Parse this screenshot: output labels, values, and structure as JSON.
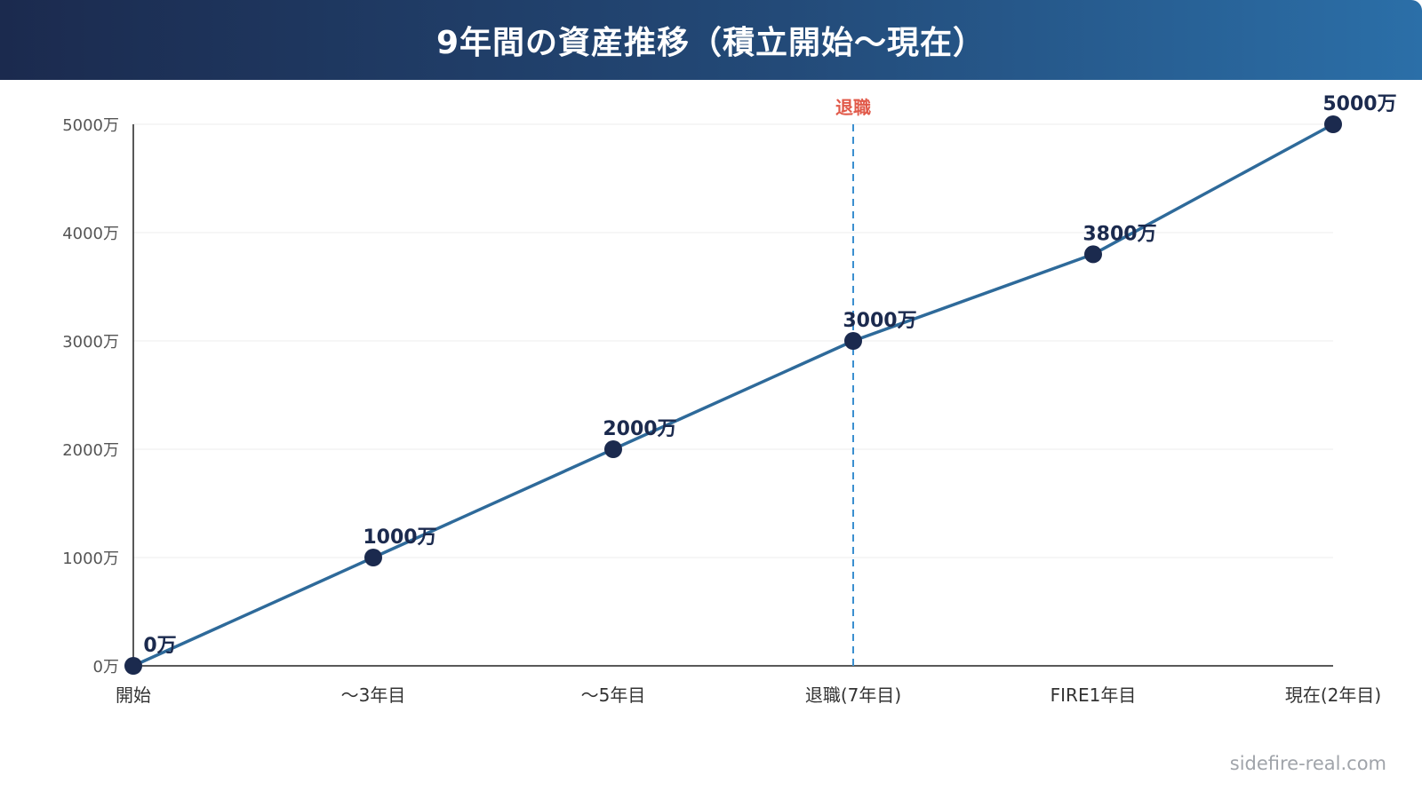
{
  "title": "9年間の資産推移（積立開始〜現在）",
  "footer": "sidefire-real.com",
  "colors": {
    "line": "#2e6a9a",
    "point": "#1b2a4e",
    "marker": "#3b8fd0",
    "marker_text": "#e15a4a",
    "tick": "#555555",
    "grid": "#ececec"
  },
  "chart_data": {
    "type": "line",
    "categories": [
      "開始",
      "〜3年目",
      "〜5年目",
      "退職(7年目)",
      "FIRE1年目",
      "現在(2年目)"
    ],
    "series": [
      {
        "values": [
          0,
          1000,
          2000,
          3000,
          3800,
          5000
        ]
      }
    ],
    "data_labels": [
      "0万",
      "1000万",
      "2000万",
      "3000万",
      "3800万",
      "5000万"
    ],
    "yticks": [
      0,
      1000,
      2000,
      3000,
      4000,
      5000
    ],
    "ytick_labels": [
      "0万",
      "1000万",
      "2000万",
      "3000万",
      "4000万",
      "5000万"
    ],
    "ylim": [
      0,
      5000
    ],
    "grid": true,
    "annotation": {
      "category_index": 3,
      "label": "退職",
      "style": "dashed-vertical"
    }
  }
}
